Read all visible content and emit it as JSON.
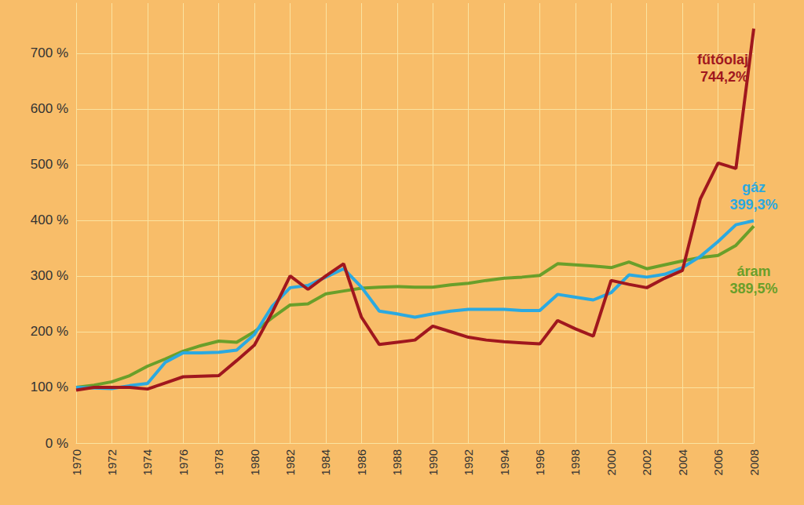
{
  "chart_data": {
    "type": "line",
    "x": [
      1970,
      1971,
      1972,
      1973,
      1974,
      1975,
      1976,
      1977,
      1978,
      1979,
      1980,
      1981,
      1982,
      1983,
      1984,
      1985,
      1986,
      1987,
      1988,
      1989,
      1990,
      1991,
      1992,
      1993,
      1994,
      1995,
      1996,
      1997,
      1998,
      1999,
      2000,
      2001,
      2002,
      2003,
      2004,
      2005,
      2006,
      2007,
      2008
    ],
    "series": [
      {
        "name": "fűtőolaj",
        "color": "#A0171E",
        "values": [
          95,
          100,
          100,
          100,
          97,
          108,
          119,
          120,
          121,
          148,
          176,
          235,
          300,
          276,
          300,
          322,
          226,
          177,
          181,
          185,
          210,
          200,
          190,
          185,
          182,
          180,
          178,
          220,
          205,
          192,
          292,
          285,
          279,
          296,
          310,
          438,
          503,
          493,
          744.2
        ],
        "value_labels": [
          null,
          null,
          null,
          null,
          null,
          null,
          null,
          null,
          null,
          null,
          null,
          null,
          null,
          null,
          null,
          null,
          null,
          null,
          null,
          null,
          null,
          null,
          null,
          null,
          null,
          null,
          null,
          null,
          null,
          null,
          null,
          null,
          null,
          null,
          null,
          null,
          null,
          null,
          "744,2%"
        ]
      },
      {
        "name": "gáz",
        "color": "#2BA9E0",
        "values": [
          100,
          99,
          98,
          103,
          107,
          145,
          162,
          162,
          163,
          167,
          195,
          246,
          279,
          283,
          298,
          313,
          280,
          237,
          232,
          226,
          232,
          237,
          240,
          240,
          240,
          238,
          238,
          267,
          262,
          257,
          270,
          302,
          298,
          303,
          315,
          335,
          362,
          392,
          399.3
        ],
        "value_labels": [
          null,
          null,
          null,
          null,
          null,
          null,
          null,
          null,
          null,
          null,
          null,
          null,
          null,
          null,
          null,
          null,
          null,
          null,
          null,
          null,
          null,
          null,
          null,
          null,
          null,
          null,
          null,
          null,
          null,
          null,
          null,
          null,
          null,
          null,
          null,
          null,
          null,
          null,
          "399,3%"
        ]
      },
      {
        "name": "áram",
        "color": "#6A9F2A",
        "values": [
          100,
          104,
          110,
          121,
          138,
          151,
          165,
          175,
          183,
          181,
          200,
          225,
          248,
          250,
          268,
          273,
          278,
          280,
          281,
          280,
          280,
          284,
          287,
          292,
          296,
          298,
          301,
          322,
          320,
          318,
          315,
          325,
          313,
          320,
          327,
          333,
          337,
          355,
          389.5
        ],
        "value_labels": [
          null,
          null,
          null,
          null,
          null,
          null,
          null,
          null,
          null,
          null,
          null,
          null,
          null,
          null,
          null,
          null,
          null,
          null,
          null,
          null,
          null,
          null,
          null,
          null,
          null,
          null,
          null,
          null,
          null,
          null,
          null,
          null,
          null,
          null,
          null,
          null,
          null,
          null,
          "389,5%"
        ]
      }
    ],
    "xlim": [
      1970,
      2008
    ],
    "xticks": [
      1970,
      1972,
      1974,
      1976,
      1978,
      1980,
      1982,
      1984,
      1986,
      1988,
      1990,
      1992,
      1994,
      1996,
      1998,
      2000,
      2002,
      2004,
      2006,
      2008
    ],
    "ylim": [
      0,
      790
    ],
    "yticks": [
      {
        "value": 0,
        "label": "0 %"
      },
      {
        "value": 100,
        "label": "100 %"
      },
      {
        "value": 200,
        "label": "200 %"
      },
      {
        "value": 300,
        "label": "300 %"
      },
      {
        "value": 400,
        "label": "400 %"
      },
      {
        "value": 500,
        "label": "500 %"
      },
      {
        "value": 600,
        "label": "600 %"
      },
      {
        "value": 700,
        "label": "700 %"
      }
    ],
    "grid": true
  }
}
